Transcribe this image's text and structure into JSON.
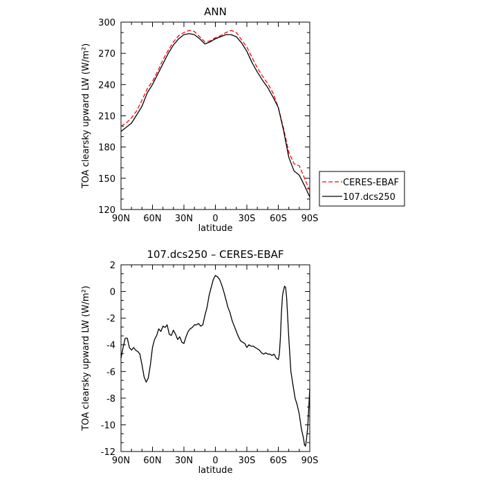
{
  "chart_data": [
    {
      "type": "line",
      "title": "ANN",
      "xlabel": "latitude",
      "ylabel": "TOA clearsky upward LW (W/m²)",
      "xlim": [
        -90,
        90
      ],
      "ylim": [
        120,
        300
      ],
      "x_tick_values": [
        -90,
        -60,
        -30,
        0,
        30,
        60,
        90
      ],
      "x_tick_labels": [
        "90N",
        "60N",
        "30N",
        "0",
        "30S",
        "60S",
        "90S"
      ],
      "y_ticks": [
        120,
        150,
        180,
        210,
        240,
        270,
        300
      ],
      "legend_position": "right",
      "series": [
        {
          "name": "CERES-EBAF",
          "color": "#ff0000",
          "style": "dashed",
          "x": [
            -90,
            -85,
            -80,
            -75,
            -70,
            -65,
            -60,
            -55,
            -50,
            -45,
            -40,
            -35,
            -30,
            -25,
            -20,
            -15,
            -10,
            -5,
            0,
            5,
            10,
            15,
            20,
            25,
            30,
            35,
            40,
            45,
            50,
            55,
            60,
            65,
            70,
            75,
            80,
            85,
            90
          ],
          "y": [
            200,
            203,
            208,
            215,
            225,
            236,
            243,
            253,
            264,
            273,
            281,
            287,
            290,
            292,
            291,
            286,
            281,
            282,
            285,
            287,
            290,
            292,
            290,
            283,
            276,
            266,
            256,
            248,
            241,
            232,
            218,
            198,
            175,
            164,
            162,
            150,
            138
          ]
        },
        {
          "name": "107.dcs250",
          "color": "#000000",
          "style": "solid",
          "x": [
            -90,
            -85,
            -80,
            -75,
            -70,
            -65,
            -60,
            -55,
            -50,
            -45,
            -40,
            -35,
            -30,
            -25,
            -20,
            -15,
            -10,
            -5,
            0,
            5,
            10,
            15,
            20,
            25,
            30,
            35,
            40,
            45,
            50,
            55,
            60,
            65,
            70,
            75,
            80,
            85,
            90
          ],
          "y": [
            195,
            199,
            203,
            211,
            219,
            232,
            240,
            250,
            260,
            270,
            278,
            284,
            288,
            289,
            288,
            284,
            279,
            281,
            284,
            286,
            288,
            288,
            286,
            280,
            272,
            261,
            252,
            244,
            237,
            228,
            218,
            196,
            170,
            157,
            153,
            143,
            132
          ]
        }
      ]
    },
    {
      "type": "line",
      "title": "107.dcs250 – CERES-EBAF",
      "xlabel": "latitude",
      "ylabel": "TOA clearsky upward LW (W/m²)",
      "xlim": [
        -90,
        90
      ],
      "ylim": [
        -12,
        2
      ],
      "x_tick_values": [
        -90,
        -60,
        -30,
        0,
        30,
        60,
        90
      ],
      "x_tick_labels": [
        "90N",
        "60N",
        "30N",
        "0",
        "30S",
        "60S",
        "90S"
      ],
      "y_ticks": [
        -12,
        -10,
        -8,
        -6,
        -4,
        -2,
        0,
        2
      ],
      "series": [
        {
          "color": "#000000",
          "style": "solid",
          "x": [
            -90,
            -88,
            -86,
            -84,
            -82,
            -80,
            -78,
            -76,
            -74,
            -72,
            -70,
            -68,
            -66,
            -64,
            -62,
            -60,
            -58,
            -56,
            -54,
            -52,
            -50,
            -48,
            -46,
            -44,
            -42,
            -40,
            -38,
            -36,
            -34,
            -32,
            -30,
            -28,
            -26,
            -24,
            -22,
            -20,
            -18,
            -16,
            -14,
            -12,
            -10,
            -8,
            -6,
            -4,
            -2,
            0,
            2,
            4,
            6,
            8,
            10,
            12,
            14,
            16,
            18,
            20,
            22,
            24,
            26,
            28,
            30,
            32,
            34,
            36,
            38,
            40,
            42,
            44,
            46,
            48,
            50,
            52,
            54,
            56,
            58,
            60,
            61,
            62,
            63,
            64,
            65,
            66,
            67,
            68,
            70,
            72,
            74,
            76,
            78,
            80,
            82,
            84,
            85,
            86,
            87,
            88,
            89,
            90
          ],
          "y": [
            -5.0,
            -4.2,
            -3.5,
            -3.5,
            -4.2,
            -4.4,
            -4.2,
            -4.4,
            -4.5,
            -4.7,
            -5.5,
            -6.4,
            -6.8,
            -6.5,
            -5.5,
            -4.2,
            -3.6,
            -3.3,
            -2.8,
            -3.0,
            -2.6,
            -2.7,
            -2.5,
            -3.2,
            -3.3,
            -2.9,
            -3.2,
            -3.6,
            -3.4,
            -3.8,
            -3.9,
            -3.4,
            -3.0,
            -2.8,
            -2.7,
            -2.5,
            -2.5,
            -2.4,
            -2.6,
            -2.5,
            -1.8,
            -1.2,
            -0.3,
            0.3,
            0.9,
            1.2,
            1.1,
            0.9,
            0.5,
            0.0,
            -0.6,
            -1.2,
            -1.6,
            -2.2,
            -2.6,
            -3.0,
            -3.4,
            -3.7,
            -3.8,
            -3.9,
            -4.2,
            -4.0,
            -4.1,
            -4.1,
            -4.2,
            -4.3,
            -4.4,
            -4.6,
            -4.7,
            -4.6,
            -4.7,
            -4.7,
            -4.8,
            -4.7,
            -5.0,
            -5.1,
            -4.7,
            -3.5,
            -1.6,
            -0.3,
            0.1,
            0.4,
            0.3,
            -0.5,
            -3.5,
            -6.0,
            -7.0,
            -8.0,
            -8.5,
            -9.2,
            -10.3,
            -11.0,
            -11.5,
            -11.6,
            -11.0,
            -10.2,
            -8.8,
            -7.3
          ]
        }
      ]
    }
  ]
}
